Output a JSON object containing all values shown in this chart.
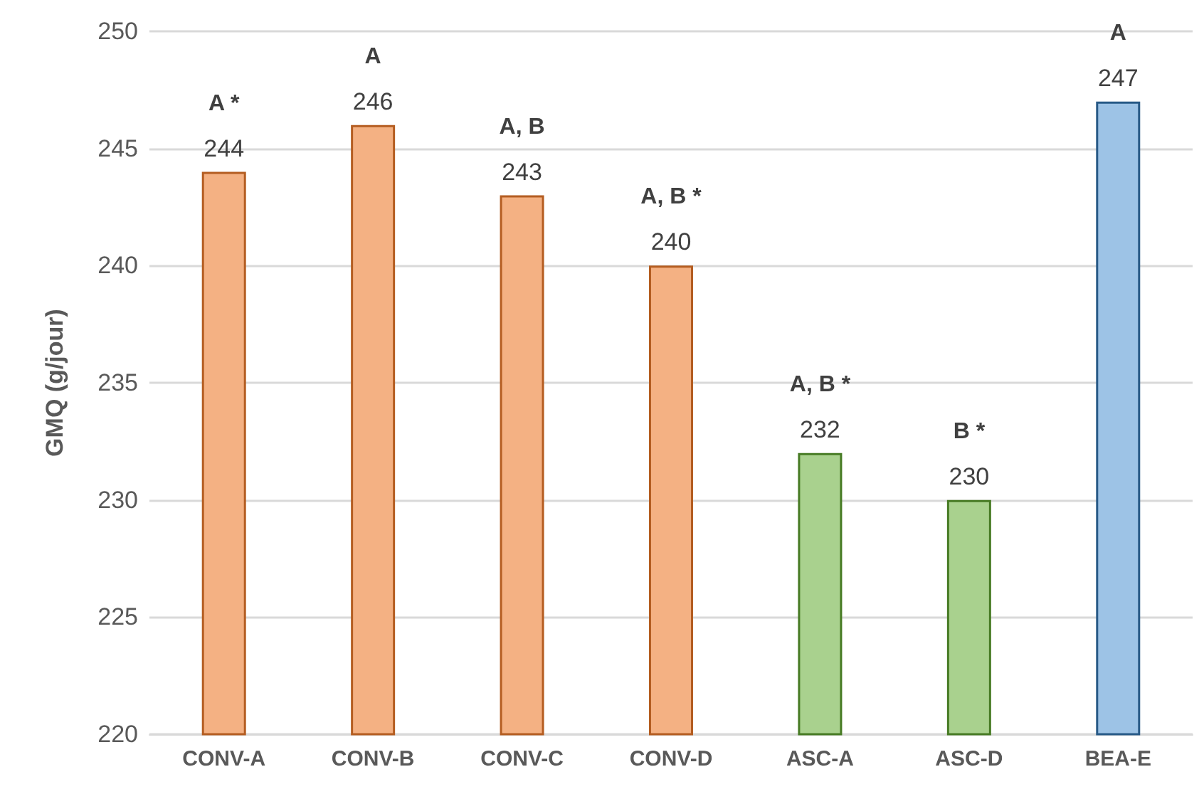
{
  "chart_data": {
    "type": "bar",
    "ylabel": "GMQ (g/jour)",
    "categories": [
      "CONV-A",
      "CONV-B",
      "CONV-C",
      "CONV-D",
      "ASC-A",
      "ASC-D",
      "BEA-E"
    ],
    "values": [
      244,
      246,
      243,
      240,
      232,
      230,
      247
    ],
    "colors": [
      "#f4b183",
      "#f4b183",
      "#f4b183",
      "#f4b183",
      "#a9d18e",
      "#a9d18e",
      "#9dc3e6"
    ],
    "ylim": [
      220,
      250
    ],
    "yticks": [
      220,
      225,
      230,
      235,
      240,
      245,
      250
    ],
    "grid": "y",
    "data_labels": true,
    "annotations": [
      {
        "text": "A *",
        "x": "CONV-A",
        "y": 244
      },
      {
        "text": "A",
        "x": "CONV-B",
        "y": 246
      },
      {
        "text": "A, B",
        "x": "CONV-C",
        "y": 243
      },
      {
        "text": "A, B *",
        "x": "CONV-D",
        "y": 240
      },
      {
        "text": "A, B *",
        "x": "ASC-A",
        "y": 232
      },
      {
        "text": "B *",
        "x": "ASC-D",
        "y": 230
      },
      {
        "text": "A",
        "x": "BEA-E",
        "y": 247
      }
    ]
  }
}
